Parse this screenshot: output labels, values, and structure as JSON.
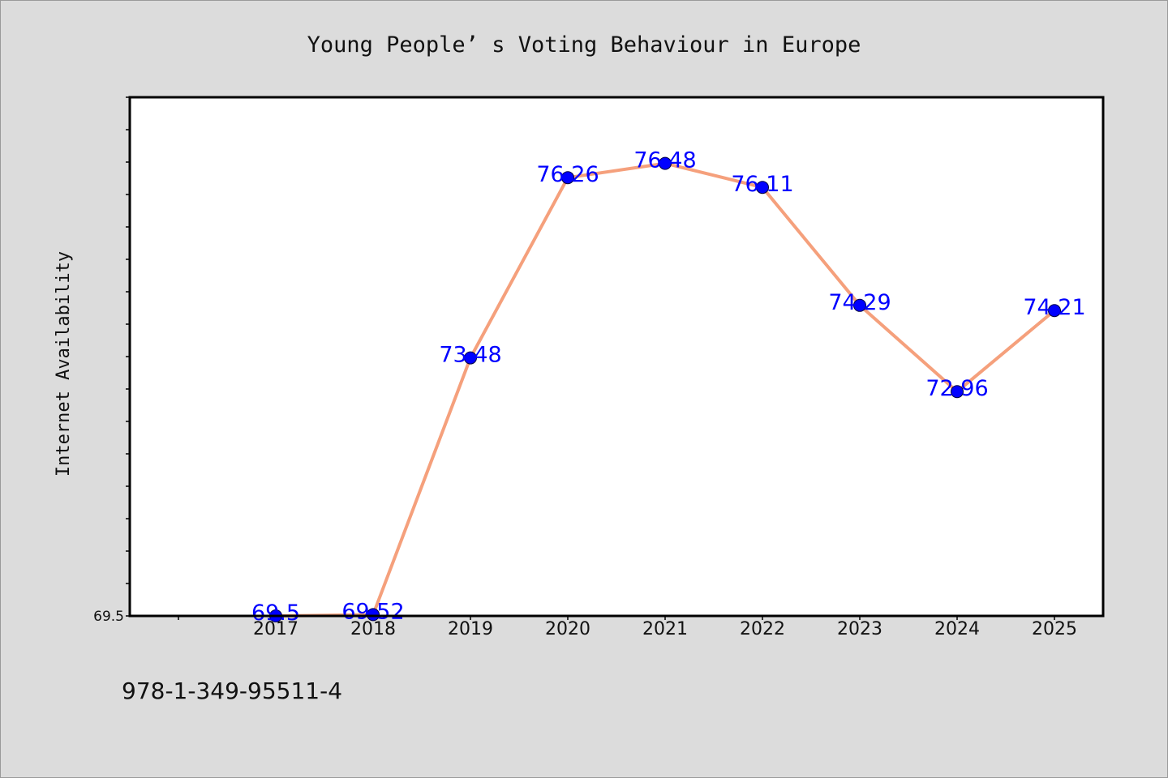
{
  "colors": {
    "background": "#dcdcdc",
    "plot_background": "#ffffff",
    "line": "#f5a07c",
    "marker": "#0000ff",
    "data_label": "#0000ff",
    "axes": "#000000"
  },
  "footnote": "978-1-349-95511-4",
  "chart_data": {
    "type": "line",
    "title": "Young People’ s Voting Behaviour in Europe",
    "xlabel": "",
    "ylabel": "Internet Availability",
    "categories": [
      "2017",
      "2018",
      "2019",
      "2020",
      "2021",
      "2022",
      "2023",
      "2024",
      "2025"
    ],
    "series": [
      {
        "values": [
          69.5,
          69.52,
          73.48,
          76.26,
          76.48,
          76.11,
          74.29,
          72.96,
          74.21
        ],
        "labels": [
          "69.5",
          "69.52",
          "73.48",
          "76.26",
          "76.48",
          "76.11",
          "74.29",
          "72.96",
          "74.21"
        ]
      }
    ],
    "ytick_labels": [
      "69.5"
    ],
    "ylim": [
      69.5,
      77.5
    ],
    "grid": false,
    "legend": "none"
  }
}
